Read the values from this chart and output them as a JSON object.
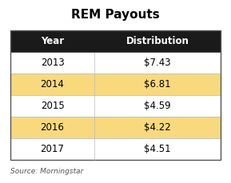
{
  "title": "REM Payouts",
  "header": [
    "Year",
    "Distribution"
  ],
  "rows": [
    [
      "2013",
      "$7.43"
    ],
    [
      "2014",
      "$6.81"
    ],
    [
      "2015",
      "$4.59"
    ],
    [
      "2016",
      "$4.22"
    ],
    [
      "2017",
      "$4.51"
    ]
  ],
  "highlight_rows": [
    1,
    3
  ],
  "header_bg": "#1a1a1a",
  "header_fg": "#ffffff",
  "highlight_bg": "#f9d97e",
  "normal_bg": "#ffffff",
  "normal_fg": "#000000",
  "source_text": "Source: Morningstar",
  "title_fontsize": 11,
  "header_fontsize": 8.5,
  "cell_fontsize": 8.5,
  "source_fontsize": 6.5
}
